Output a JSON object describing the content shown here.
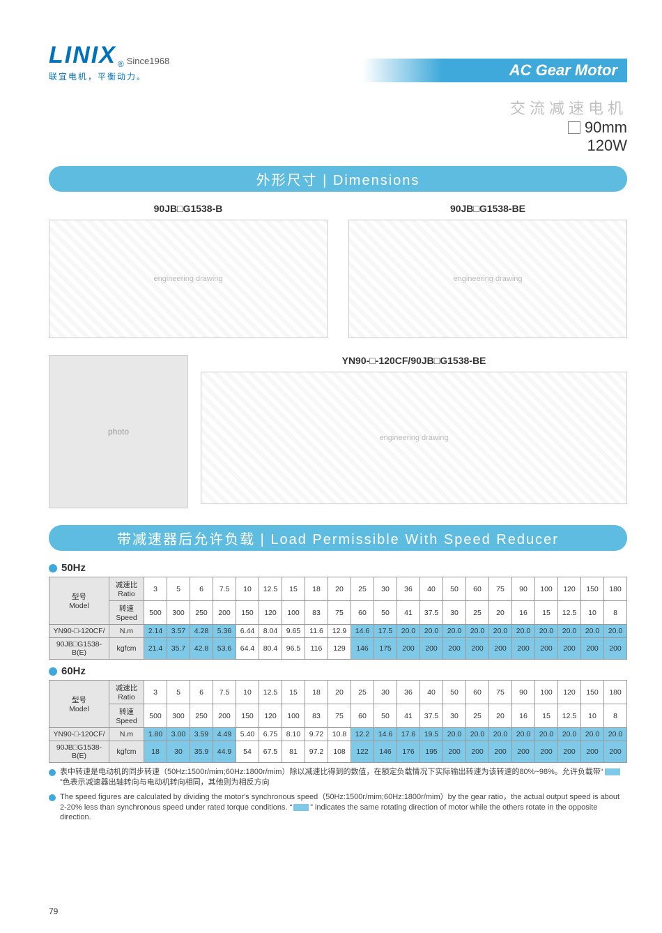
{
  "header": {
    "logo": "LINIX",
    "registered": "®",
    "since": "Since1968",
    "tagline": "联宜电机，平衡动力。",
    "title": "AC Gear Motor",
    "sub_cn": "交流减速电机",
    "size": "90mm",
    "watt": "120W"
  },
  "sections": {
    "dimensions": "外形尺寸 | Dimensions",
    "load": "带减速器后允许负载 | Load Permissible With Speed Reducer"
  },
  "drawings": {
    "d1_title": "90JB□G1538-B",
    "d2_title": "90JB□G1538-BE",
    "d3_title": "YN90-□-120CF/90JB□G1538-BE",
    "placeholder": "engineering drawing"
  },
  "tables": {
    "hz50_label": "50Hz",
    "hz60_label": "60Hz",
    "model_label_cn": "型号",
    "model_label_en": "Model",
    "ratio_label_cn": "减速比",
    "ratio_label_en": "Ratio",
    "speed_label_cn": "转速",
    "speed_label_en": "Speed",
    "model1": "YN90-□-120CF/",
    "model2": "90JB□G1538-B(E)",
    "unit1": "N.m",
    "unit2": "kgfcm",
    "ratios": [
      "3",
      "5",
      "6",
      "7.5",
      "10",
      "12.5",
      "15",
      "18",
      "20",
      "25",
      "30",
      "36",
      "40",
      "50",
      "60",
      "75",
      "90",
      "100",
      "120",
      "150",
      "180"
    ],
    "speeds": [
      "500",
      "300",
      "250",
      "200",
      "150",
      "120",
      "100",
      "83",
      "75",
      "60",
      "50",
      "41",
      "37.5",
      "30",
      "25",
      "20",
      "16",
      "15",
      "12.5",
      "10",
      "8"
    ],
    "hz50_nm": [
      "2.14",
      "3.57",
      "4.28",
      "5.36",
      "6.44",
      "8.04",
      "9.65",
      "11.6",
      "12.9",
      "14.6",
      "17.5",
      "20.0",
      "20.0",
      "20.0",
      "20.0",
      "20.0",
      "20.0",
      "20.0",
      "20.0",
      "20.0",
      "20.0"
    ],
    "hz50_kgfcm": [
      "21.4",
      "35.7",
      "42.8",
      "53.6",
      "64.4",
      "80.4",
      "96.5",
      "116",
      "129",
      "146",
      "175",
      "200",
      "200",
      "200",
      "200",
      "200",
      "200",
      "200",
      "200",
      "200",
      "200"
    ],
    "hz60_nm": [
      "1.80",
      "3.00",
      "3.59",
      "4.49",
      "5.40",
      "6.75",
      "8.10",
      "9.72",
      "10.8",
      "12.2",
      "14.6",
      "17.6",
      "19.5",
      "20.0",
      "20.0",
      "20.0",
      "20.0",
      "20.0",
      "20.0",
      "20.0",
      "20.0"
    ],
    "hz60_kgfcm": [
      "18",
      "30",
      "35.9",
      "44.9",
      "54",
      "67.5",
      "81",
      "97.2",
      "108",
      "122",
      "146",
      "176",
      "195",
      "200",
      "200",
      "200",
      "200",
      "200",
      "200",
      "200",
      "200"
    ],
    "highlight_cols_50": [
      0,
      1,
      2,
      3,
      9,
      10,
      11,
      12,
      13,
      14,
      15,
      16,
      17,
      18,
      19,
      20
    ],
    "highlight_cols_60": [
      0,
      1,
      2,
      3,
      9,
      10,
      11,
      12,
      13,
      14,
      15,
      16,
      17,
      18,
      19,
      20
    ]
  },
  "footnotes": {
    "note_cn": "表中转速是电动机的同步转速（50Hz:1500r/mim;60Hz:1800r/mim）除以减速比得到的数值，在额定负载情况下实际输出转速为该转速的80%~98%。允许负载带“",
    "note_cn_tail": "”色表示减速器出轴转向与电动机转向相同，其他则为相反方向",
    "note_en": "The speed figures are calculated by dividing the motor's synchronous speed（50Hz:1500r/mim;60Hz:1800r/mim）by the gear ratio，the actual output speed is about 2-20% less than synchronous speed under rated torque conditions. “",
    "note_en_tail": "” indicates the same rotating direction of motor while the others rotate in the opposite direction."
  },
  "page_number": "79"
}
